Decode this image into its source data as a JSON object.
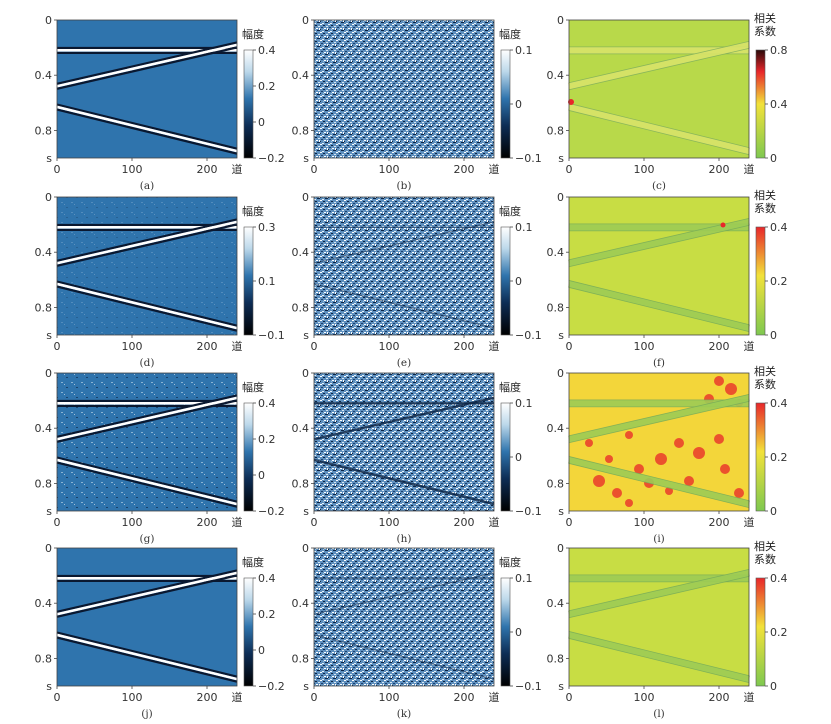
{
  "figure": {
    "axis_labels": {
      "time_unit": "s",
      "trace_unit": "道"
    },
    "y_ticks": [
      "0",
      "0.4",
      "0.8"
    ],
    "x_ticks": [
      "0",
      "100",
      "200"
    ],
    "colors": {
      "seismic_base": "#2f74ad",
      "noise_light": "#bcd8ea",
      "noise_dark": "#0c2444",
      "event_white": "#ffffff",
      "event_dark": "#0a1830",
      "corr_low": "#7ec850",
      "corr_mid": "#f2e23a",
      "corr_high": "#e8262a",
      "corr_max": "#2a0a0a"
    },
    "rows": [
      {
        "panels": [
          {
            "id": "a",
            "caption": "(a)",
            "kind": "signal",
            "colorbar": {
              "title": [
                "幅度"
              ],
              "ticks": [
                "0.4",
                "0.2",
                "0",
                "−0.2"
              ]
            }
          },
          {
            "id": "b",
            "caption": "(b)",
            "kind": "noise",
            "colorbar": {
              "title": [
                "幅度"
              ],
              "ticks": [
                "0.1",
                "0",
                "−0.1"
              ]
            }
          },
          {
            "id": "c",
            "caption": "(c)",
            "kind": "corr",
            "colorbar": {
              "title": [
                "相关",
                "系数"
              ],
              "ticks": [
                "0.8",
                "0.4",
                "0"
              ]
            }
          }
        ]
      },
      {
        "panels": [
          {
            "id": "d",
            "caption": "(d)",
            "kind": "signal",
            "colorbar": {
              "title": [
                "幅度"
              ],
              "ticks": [
                "0.3",
                "0.1",
                "−0.1"
              ]
            }
          },
          {
            "id": "e",
            "caption": "(e)",
            "kind": "noise",
            "colorbar": {
              "title": [
                "幅度"
              ],
              "ticks": [
                "0.1",
                "0",
                "−0.1"
              ]
            }
          },
          {
            "id": "f",
            "caption": "(f)",
            "kind": "corr",
            "colorbar": {
              "title": [
                "相关",
                "系数"
              ],
              "ticks": [
                "0.4",
                "0.2",
                "0"
              ]
            }
          }
        ]
      },
      {
        "panels": [
          {
            "id": "g",
            "caption": "(g)",
            "kind": "signal",
            "colorbar": {
              "title": [
                "幅度"
              ],
              "ticks": [
                "0.4",
                "0.2",
                "0",
                "−0.2"
              ]
            }
          },
          {
            "id": "h",
            "caption": "(h)",
            "kind": "noise",
            "colorbar": {
              "title": [
                "幅度"
              ],
              "ticks": [
                "0.1",
                "0",
                "−0.1"
              ]
            }
          },
          {
            "id": "i",
            "caption": "(i)",
            "kind": "corr",
            "colorbar": {
              "title": [
                "相关",
                "系数"
              ],
              "ticks": [
                "0.4",
                "0.2",
                "0"
              ]
            }
          }
        ]
      },
      {
        "panels": [
          {
            "id": "j",
            "caption": "(j)",
            "kind": "signal",
            "colorbar": {
              "title": [
                "幅度"
              ],
              "ticks": [
                "0.4",
                "0.2",
                "0",
                "−0.2"
              ]
            }
          },
          {
            "id": "k",
            "caption": "(k)",
            "kind": "noise",
            "colorbar": {
              "title": [
                "幅度"
              ],
              "ticks": [
                "0.1",
                "0",
                "−0.1"
              ]
            }
          },
          {
            "id": "l",
            "caption": "(l)",
            "kind": "corr",
            "colorbar": {
              "title": [
                "相关",
                "系数"
              ],
              "ticks": [
                "0.4",
                "0.2",
                "0"
              ]
            }
          }
        ]
      }
    ]
  }
}
